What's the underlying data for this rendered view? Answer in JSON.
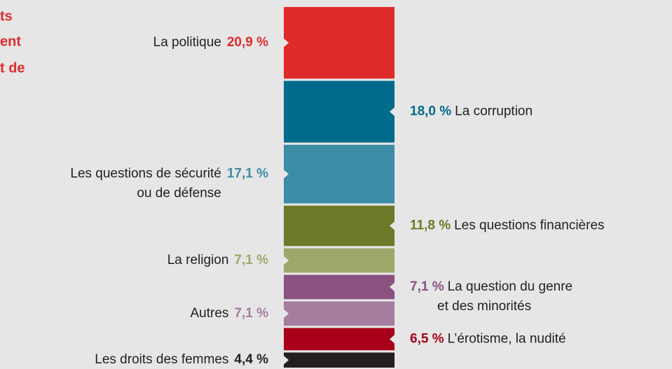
{
  "chart_data": {
    "type": "stacked_column",
    "title_lines": [
      "ts",
      "ent",
      "t de"
    ],
    "title_color": "#e02b2b",
    "categories": [
      [
        "La politique"
      ],
      [
        "La corruption"
      ],
      [
        "Les questions de sécurité",
        "ou de défense"
      ],
      [
        "Les questions financières"
      ],
      [
        "La religion"
      ],
      [
        "La question du genre",
        "et des minorités"
      ],
      [
        "Autres"
      ],
      [
        "L’érotisme, la nudité"
      ],
      [
        "Les droits des femmes"
      ]
    ],
    "values": [
      20.9,
      18.0,
      17.1,
      11.8,
      7.1,
      7.1,
      7.1,
      6.5,
      4.4
    ],
    "value_labels": [
      "20,9 %",
      "18,0 %",
      "17,1 %",
      "11,8 %",
      "7,1 %",
      "7,1 %",
      "7,1 %",
      "6,5 %",
      "4,4 %"
    ],
    "colors": [
      "#e02b2b",
      "#006b8a",
      "#3d8ca5",
      "#6b7a28",
      "#9ea86a",
      "#8a5280",
      "#a57d9f",
      "#a8001a",
      "#231f20"
    ]
  }
}
